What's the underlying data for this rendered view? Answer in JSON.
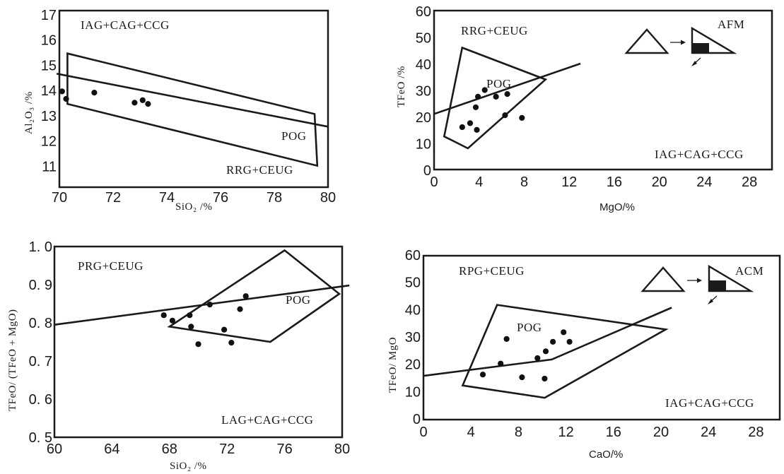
{
  "chart_data": [
    {
      "type": "scatter",
      "xlabel": "SiO₂ /%",
      "ylabel": "Al₂O₃ /%",
      "xlim": [
        70,
        80
      ],
      "ylim": [
        10,
        17
      ],
      "xticks": [
        70,
        72,
        74,
        76,
        78,
        80
      ],
      "yticks": [
        11,
        12,
        13,
        14,
        15,
        16,
        17
      ],
      "tick_labels_x": [
        "70",
        "72",
        "74",
        "76",
        "78",
        "80"
      ],
      "tick_labels_y": [
        "11",
        "12",
        "13",
        "14",
        "15",
        "16",
        "17"
      ],
      "annotations": [
        "IAG+CAG+CCG",
        "POG",
        "RRG+CEUG"
      ],
      "lines": [
        [
          [
            69.9,
            14.5
          ],
          [
            80,
            12.4
          ]
        ]
      ],
      "polygons": [
        [
          [
            70.3,
            15.3
          ],
          [
            79.5,
            12.9
          ],
          [
            79.6,
            10.85
          ],
          [
            70.3,
            13.3
          ]
        ]
      ],
      "points": [
        [
          70.1,
          13.8
        ],
        [
          70.25,
          13.5
        ],
        [
          71.3,
          13.75
        ],
        [
          72.8,
          13.35
        ],
        [
          73.1,
          13.45
        ],
        [
          73.3,
          13.3
        ]
      ]
    },
    {
      "type": "scatter",
      "xlabel": "MgO/%",
      "ylabel": "TFeO /%",
      "xlim": [
        0,
        30
      ],
      "ylim": [
        0,
        60
      ],
      "xticks": [
        0,
        4,
        8,
        12,
        16,
        20,
        24,
        28
      ],
      "yticks": [
        0,
        10,
        20,
        30,
        40,
        50,
        60
      ],
      "tick_labels_x": [
        "0",
        "4",
        "8",
        "12",
        "16",
        "20",
        "24",
        "28"
      ],
      "tick_labels_y": [
        "0",
        "10",
        "20",
        "30",
        "40",
        "50",
        "60"
      ],
      "annotations": [
        "RRG+CEUG",
        "POG",
        "IAG+CAG+CCG",
        "AFM"
      ],
      "lines": [
        [
          [
            0,
            21
          ],
          [
            13,
            40
          ]
        ]
      ],
      "polygons": [
        [
          [
            2.5,
            46
          ],
          [
            9.9,
            34
          ],
          [
            3.0,
            8
          ],
          [
            0.9,
            12.5
          ]
        ]
      ],
      "points": [
        [
          2.5,
          16
        ],
        [
          3.2,
          17.5
        ],
        [
          3.7,
          23.5
        ],
        [
          3.8,
          15
        ],
        [
          3.9,
          27.5
        ],
        [
          4.5,
          30
        ],
        [
          5.5,
          27.5
        ],
        [
          6.3,
          20.5
        ],
        [
          6.5,
          28.5
        ],
        [
          7.8,
          19.5
        ]
      ]
    },
    {
      "type": "scatter",
      "xlabel": "SiO₂ /%",
      "ylabel": "TFeO/ (TFeO + MgO)",
      "xlim": [
        60,
        80
      ],
      "ylim": [
        0.5,
        1.0
      ],
      "xticks": [
        60,
        64,
        68,
        72,
        76,
        80
      ],
      "yticks": [
        0.5,
        0.6,
        0.7,
        0.8,
        0.9,
        1.0
      ],
      "tick_labels_x": [
        "60",
        "64",
        "68",
        "72",
        "76",
        "80"
      ],
      "tick_labels_y": [
        "0. 5",
        "0. 6",
        "0. 7",
        "0. 8",
        "0. 9",
        "1. 0"
      ],
      "annotations": [
        "PRG+CEUG",
        "POG",
        "LAG+CAG+CCG"
      ],
      "lines": [
        [
          [
            60,
            0.795
          ],
          [
            80.5,
            0.898
          ]
        ]
      ],
      "polygons": [
        [
          [
            76,
            0.99
          ],
          [
            79.8,
            0.876
          ],
          [
            75,
            0.75
          ],
          [
            68,
            0.79
          ]
        ]
      ],
      "points": [
        [
          67.6,
          0.82
        ],
        [
          68.2,
          0.806
        ],
        [
          69.4,
          0.82
        ],
        [
          69.5,
          0.79
        ],
        [
          70,
          0.744
        ],
        [
          70.8,
          0.848
        ],
        [
          71.8,
          0.782
        ],
        [
          72.3,
          0.748
        ],
        [
          72.9,
          0.836
        ],
        [
          73.3,
          0.87
        ]
      ]
    },
    {
      "type": "scatter",
      "xlabel": "CaO/%",
      "ylabel": "TFeO/ MgO",
      "xlim": [
        0,
        30
      ],
      "ylim": [
        0,
        60
      ],
      "xticks": [
        0,
        4,
        8,
        12,
        16,
        20,
        24,
        28
      ],
      "yticks": [
        0,
        10,
        20,
        30,
        40,
        50,
        60
      ],
      "tick_labels_x": [
        "0",
        "4",
        "8",
        "12",
        "16",
        "20",
        "24",
        "28"
      ],
      "tick_labels_y": [
        "0",
        "10",
        "20",
        "30",
        "40",
        "50",
        "60"
      ],
      "annotations": [
        "RPG+CEUG",
        "POG",
        "IAG+CAG+CCG",
        "ACM"
      ],
      "lines": [
        [
          [
            0,
            16
          ],
          [
            10.8,
            22
          ],
          [
            20.9,
            41
          ]
        ]
      ],
      "polygons": [
        [
          [
            6.2,
            42
          ],
          [
            20.4,
            33
          ],
          [
            10.2,
            8
          ],
          [
            3.3,
            12.5
          ]
        ]
      ],
      "points": [
        [
          5,
          16.5
        ],
        [
          6.5,
          20.5
        ],
        [
          7,
          29.5
        ],
        [
          8.3,
          15.5
        ],
        [
          9.6,
          22.5
        ],
        [
          10.2,
          15
        ],
        [
          10.3,
          25
        ],
        [
          10.9,
          28.5
        ],
        [
          11.8,
          32
        ],
        [
          12.3,
          28.5
        ]
      ]
    }
  ]
}
